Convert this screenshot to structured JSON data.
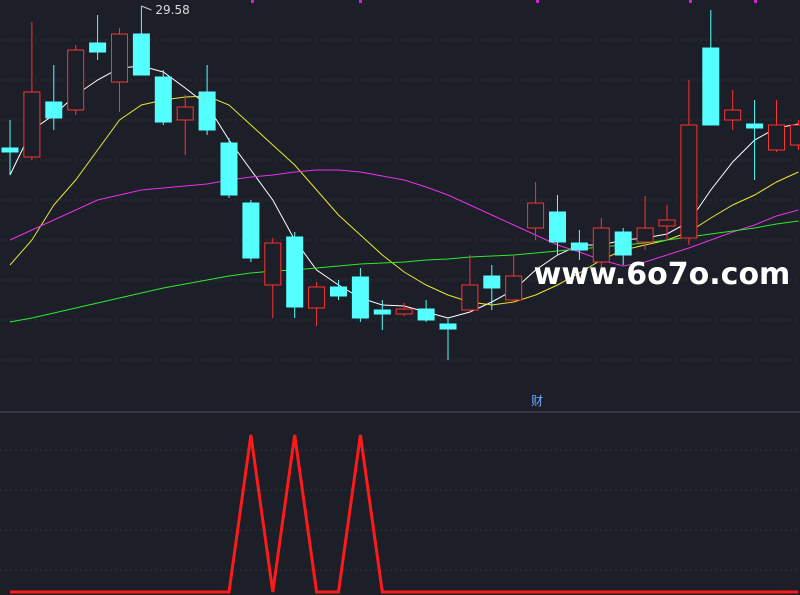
{
  "chart_data": [
    {
      "type": "candlestick",
      "annotation": 29.58,
      "watermark": "www.6o7o.com",
      "up_color": "#ff3232",
      "down_color": "#54ffff",
      "ylim": [
        22,
        29.7
      ],
      "open": [
        26.74,
        26.56,
        27.66,
        27.5,
        28.84,
        28.06,
        29.02,
        28.16,
        27.3,
        27.86,
        26.84,
        25.64,
        24.0,
        24.96,
        23.54,
        23.96,
        24.16,
        23.5,
        23.42,
        23.52,
        23.22,
        23.5,
        24.18,
        23.7,
        25.14,
        25.46,
        24.84,
        24.46,
        25.06,
        24.86,
        25.18,
        24.94,
        28.74,
        27.3,
        27.22,
        26.7,
        26.8
      ],
      "close": [
        26.66,
        27.86,
        27.34,
        28.7,
        28.66,
        29.02,
        28.2,
        27.26,
        27.56,
        27.1,
        25.8,
        24.54,
        24.84,
        23.56,
        23.96,
        23.78,
        23.34,
        23.42,
        23.52,
        23.3,
        23.12,
        24.0,
        23.94,
        24.18,
        25.64,
        24.86,
        24.7,
        25.14,
        24.6,
        25.14,
        25.3,
        27.2,
        27.2,
        27.5,
        27.14,
        27.2,
        27.2
      ],
      "high": [
        27.3,
        29.26,
        28.4,
        28.8,
        29.4,
        29.14,
        29.58,
        28.3,
        27.8,
        28.4,
        26.94,
        25.7,
        24.94,
        25.06,
        24.06,
        24.1,
        24.34,
        23.7,
        23.64,
        23.7,
        23.34,
        24.6,
        24.4,
        24.6,
        26.06,
        25.8,
        25.1,
        25.34,
        25.14,
        25.78,
        25.6,
        28.1,
        29.5,
        27.9,
        27.7,
        27.7,
        27.3
      ],
      "low": [
        26.2,
        26.5,
        27.1,
        27.4,
        28.5,
        27.46,
        28.2,
        27.2,
        26.6,
        27.0,
        25.74,
        24.46,
        23.34,
        23.34,
        23.18,
        23.7,
        23.26,
        23.1,
        23.38,
        23.26,
        22.5,
        23.46,
        23.5,
        23.64,
        24.9,
        24.6,
        24.5,
        24.3,
        24.4,
        24.7,
        24.9,
        24.8,
        27.2,
        27.1,
        26.1,
        26.66,
        26.7
      ],
      "lines": [
        {
          "color": "#ffffff",
          "values": [
            26.2,
            27.1,
            27.4,
            27.8,
            28.1,
            28.34,
            28.38,
            28.26,
            27.94,
            27.6,
            26.9,
            26.3,
            25.7,
            24.9,
            24.3,
            24.0,
            23.74,
            23.6,
            23.58,
            23.46,
            23.34,
            23.46,
            23.66,
            23.9,
            24.3,
            24.6,
            24.8,
            24.8,
            24.9,
            24.94,
            25.02,
            25.26,
            25.9,
            26.46,
            26.9,
            27.14,
            27.22
          ]
        },
        {
          "color": "#e6e632",
          "values": [
            24.4,
            24.9,
            25.6,
            26.1,
            26.7,
            27.3,
            27.6,
            27.7,
            27.76,
            27.78,
            27.6,
            27.2,
            26.8,
            26.4,
            25.9,
            25.4,
            25.0,
            24.6,
            24.26,
            24.0,
            23.8,
            23.66,
            23.6,
            23.66,
            23.8,
            24.0,
            24.24,
            24.5,
            24.7,
            24.8,
            24.9,
            25.06,
            25.34,
            25.6,
            25.8,
            26.06,
            26.26
          ]
        },
        {
          "color": "#e632e6",
          "values": [
            24.9,
            25.1,
            25.3,
            25.5,
            25.7,
            25.8,
            25.9,
            25.94,
            25.98,
            26.02,
            26.1,
            26.16,
            26.2,
            26.26,
            26.3,
            26.3,
            26.26,
            26.18,
            26.1,
            25.96,
            25.8,
            25.6,
            25.4,
            25.2,
            25.0,
            24.8,
            24.66,
            24.5,
            24.38,
            24.46,
            24.6,
            24.74,
            24.9,
            25.06,
            25.2,
            25.38,
            25.5
          ]
        },
        {
          "color": "#32e632",
          "values": [
            23.26,
            23.34,
            23.44,
            23.54,
            23.64,
            23.74,
            23.84,
            23.94,
            24.02,
            24.1,
            24.18,
            24.24,
            24.28,
            24.3,
            24.34,
            24.38,
            24.42,
            24.44,
            24.46,
            24.5,
            24.52,
            24.56,
            24.58,
            24.6,
            24.64,
            24.68,
            24.72,
            24.76,
            24.8,
            24.84,
            24.9,
            24.96,
            25.02,
            25.08,
            25.14,
            25.22,
            25.28
          ]
        }
      ]
    },
    {
      "type": "line",
      "label": "财",
      "color": "#ff1a1a",
      "ylim": [
        0,
        1
      ],
      "values": [
        0,
        0,
        0,
        0,
        0,
        0,
        0,
        0,
        0,
        0,
        0,
        1,
        0,
        1,
        0,
        0,
        1,
        0,
        0,
        0,
        0,
        0,
        0,
        0,
        0,
        0,
        0,
        0,
        0,
        0,
        0,
        0,
        0,
        0,
        0,
        0,
        0
      ]
    }
  ]
}
